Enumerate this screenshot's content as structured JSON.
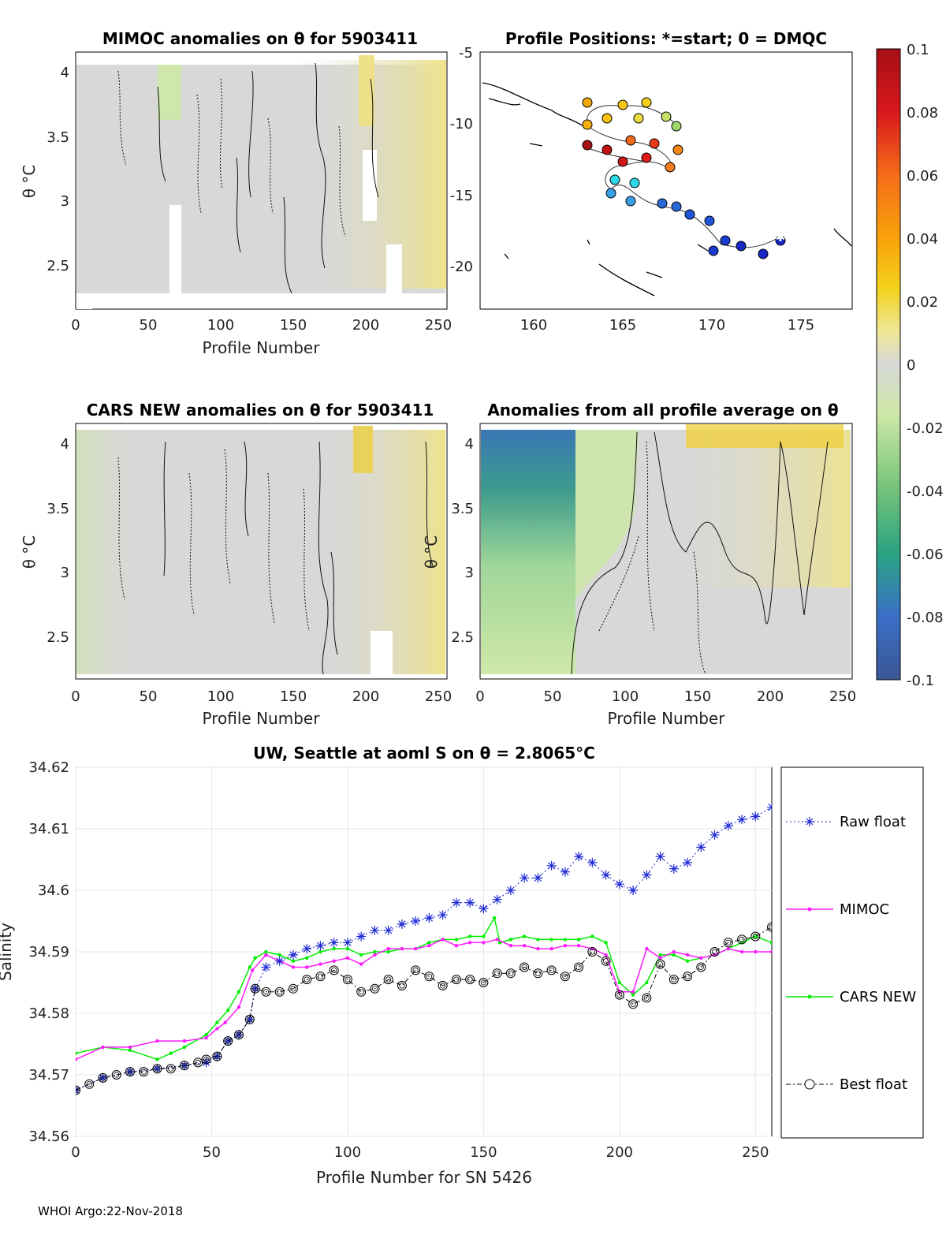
{
  "footer": "WHOI Argo:22-Nov-2018",
  "colors": {
    "raw": "#1f2bd6",
    "mimoc": "#ff1aff",
    "cars": "#00ee00",
    "best": "#000000",
    "background": "#d8d8d8"
  },
  "panels": {
    "mimoc": {
      "title": "MIMOC anomalies on θ  for 5903411",
      "ylabel": "θ °C",
      "xlabel": "Profile Number",
      "xticks": [
        "0",
        "50",
        "100",
        "150",
        "200",
        "250"
      ],
      "yticks": [
        "4",
        "3.5",
        "3",
        "2.5"
      ]
    },
    "positions": {
      "title": "Profile Positions: *=start; 0 = DMQC",
      "xticks": [
        "160",
        "165",
        "170",
        "175"
      ],
      "yticks": [
        "-5",
        "-10",
        "-15",
        "-20"
      ]
    },
    "cars": {
      "title": "CARS NEW anomalies on θ for 5903411",
      "ylabel": "θ °C",
      "xlabel": "Profile Number",
      "xticks": [
        "0",
        "50",
        "100",
        "150",
        "200",
        "250"
      ],
      "yticks": [
        "4",
        "3.5",
        "3",
        "2.5"
      ]
    },
    "allavg": {
      "title": "Anomalies from all profile average on θ",
      "ylabel": "θ °C",
      "xlabel": "Profile Number",
      "xticks": [
        "0",
        "50",
        "100",
        "150",
        "200",
        "250"
      ],
      "yticks": [
        "4",
        "3.5",
        "3",
        "2.5"
      ]
    },
    "colorbar": {
      "ticks": [
        "0.1",
        "0.08",
        "0.06",
        "0.04",
        "0.02",
        "0",
        "-0.02",
        "-0.04",
        "-0.06",
        "-0.08",
        "-0.1"
      ]
    }
  },
  "chart_data": [
    {
      "type": "line",
      "title": "UW, Seattle at aoml S on θ = 2.8065°C",
      "xlabel": "Profile Number for SN 5426",
      "ylabel": "Salinity",
      "xlim": [
        0,
        256
      ],
      "ylim": [
        34.56,
        34.62
      ],
      "xticks": [
        "0",
        "50",
        "100",
        "150",
        "200",
        "250"
      ],
      "yticks": [
        "34.62",
        "34.61",
        "34.6",
        "34.59",
        "34.58",
        "34.57",
        "34.56"
      ],
      "legend": [
        "Raw float",
        "MIMOC",
        "CARS NEW",
        "Best float"
      ],
      "legend_position": "right, outside",
      "series_keys": {
        "Raw float": {
          "x": [
            0,
            10,
            20,
            30,
            40,
            48,
            52,
            56,
            60,
            64,
            66,
            70,
            75,
            80,
            85,
            90,
            95,
            100,
            105,
            110,
            115,
            120,
            125,
            130,
            135,
            140,
            145,
            150,
            155,
            160,
            165,
            170,
            175,
            180,
            185,
            190,
            195,
            200,
            205,
            210,
            215,
            220,
            225,
            230,
            235,
            240,
            245,
            250,
            256
          ],
          "y": [
            34.5675,
            34.5695,
            34.5705,
            34.571,
            34.5715,
            34.572,
            34.573,
            34.5755,
            34.5765,
            34.579,
            34.584,
            34.5875,
            34.5885,
            34.5895,
            34.5905,
            34.591,
            34.5915,
            34.5915,
            34.5925,
            34.5935,
            34.5935,
            34.5945,
            34.595,
            34.5955,
            34.596,
            34.598,
            34.598,
            34.597,
            34.5985,
            34.6,
            34.602,
            34.602,
            34.604,
            34.603,
            34.6055,
            34.6045,
            34.6025,
            34.601,
            34.6,
            34.6025,
            34.6055,
            34.6035,
            34.6045,
            34.607,
            34.609,
            34.6105,
            34.6115,
            34.612,
            34.6135
          ]
        },
        "MIMOC": {
          "x": [
            0,
            10,
            20,
            30,
            40,
            48,
            52,
            55,
            60,
            65,
            70,
            75,
            80,
            85,
            90,
            95,
            100,
            105,
            110,
            115,
            120,
            125,
            130,
            135,
            140,
            145,
            150,
            155,
            160,
            165,
            170,
            175,
            180,
            185,
            190,
            195,
            200,
            205,
            210,
            215,
            220,
            225,
            230,
            235,
            240,
            245,
            250,
            256
          ],
          "y": [
            34.5725,
            34.5745,
            34.5745,
            34.5755,
            34.5755,
            34.576,
            34.5775,
            34.5785,
            34.581,
            34.587,
            34.5895,
            34.5885,
            34.5875,
            34.5875,
            34.588,
            34.5885,
            34.589,
            34.588,
            34.5895,
            34.5905,
            34.5905,
            34.5905,
            34.591,
            34.592,
            34.591,
            34.5915,
            34.5915,
            34.592,
            34.591,
            34.591,
            34.5905,
            34.5905,
            34.591,
            34.591,
            34.5905,
            34.5895,
            34.5835,
            34.5835,
            34.5905,
            34.589,
            34.59,
            34.5895,
            34.589,
            34.5895,
            34.5905,
            34.59,
            34.59,
            34.59
          ]
        },
        "CARS NEW": {
          "x": [
            0,
            10,
            20,
            30,
            35,
            40,
            48,
            52,
            56,
            60,
            64,
            66,
            70,
            75,
            80,
            85,
            90,
            95,
            100,
            105,
            110,
            115,
            120,
            125,
            130,
            135,
            140,
            145,
            150,
            154,
            156,
            160,
            165,
            170,
            175,
            180,
            185,
            190,
            195,
            200,
            205,
            210,
            215,
            220,
            225,
            230,
            235,
            240,
            245,
            250,
            256
          ],
          "y": [
            34.5735,
            34.5745,
            34.574,
            34.5725,
            34.5735,
            34.5745,
            34.5765,
            34.5785,
            34.5805,
            34.5835,
            34.5875,
            34.589,
            34.59,
            34.5895,
            34.5885,
            34.589,
            34.59,
            34.5905,
            34.5905,
            34.5895,
            34.59,
            34.59,
            34.5905,
            34.5905,
            34.5915,
            34.592,
            34.592,
            34.5925,
            34.5925,
            34.5955,
            34.5915,
            34.592,
            34.5925,
            34.592,
            34.592,
            34.592,
            34.592,
            34.5925,
            34.5915,
            34.585,
            34.583,
            34.585,
            34.5895,
            34.5895,
            34.5885,
            34.589,
            34.5895,
            34.5905,
            34.5915,
            34.5925,
            34.5915
          ]
        },
        "Best float": {
          "x": [
            0,
            5,
            10,
            15,
            20,
            25,
            30,
            35,
            40,
            45,
            48,
            52,
            56,
            60,
            64,
            66,
            70,
            75,
            80,
            85,
            90,
            95,
            100,
            105,
            110,
            115,
            120,
            125,
            130,
            135,
            140,
            145,
            150,
            155,
            160,
            165,
            170,
            175,
            180,
            185,
            190,
            195,
            200,
            205,
            210,
            215,
            220,
            225,
            230,
            235,
            240,
            245,
            250,
            256
          ],
          "y": [
            34.5675,
            34.5685,
            34.5695,
            34.57,
            34.5705,
            34.5705,
            34.571,
            34.571,
            34.5715,
            34.572,
            34.5725,
            34.573,
            34.5755,
            34.5765,
            34.579,
            34.584,
            34.5835,
            34.5835,
            34.584,
            34.5855,
            34.586,
            34.587,
            34.5855,
            34.5835,
            34.584,
            34.5855,
            34.5845,
            34.587,
            34.586,
            34.5845,
            34.5855,
            34.5855,
            34.585,
            34.5865,
            34.5865,
            34.5875,
            34.5865,
            34.587,
            34.586,
            34.5875,
            34.59,
            34.5885,
            34.583,
            34.5815,
            34.5825,
            34.588,
            34.5855,
            34.586,
            34.5875,
            34.59,
            34.5915,
            34.592,
            34.5925,
            34.594
          ]
        }
      }
    }
  ]
}
